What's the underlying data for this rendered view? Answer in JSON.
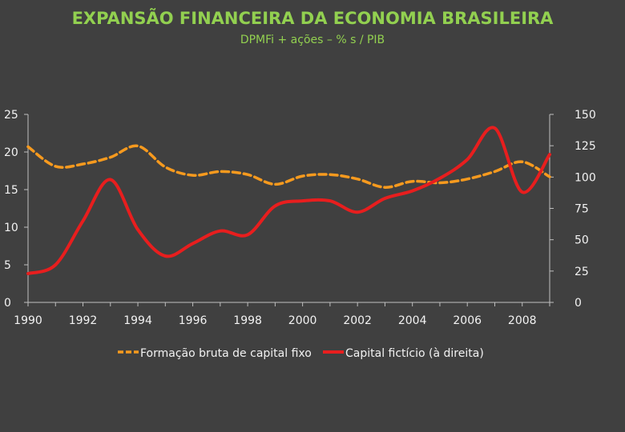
{
  "chart_data": {
    "type": "line",
    "title": "EXPANSÃO FINANCEIRA DA ECONOMIA BRASILEIRA",
    "subtitle": "DPMFi + ações – % s / PIB",
    "x": [
      1990,
      1991,
      1992,
      1993,
      1994,
      1995,
      1996,
      1997,
      1998,
      1999,
      2000,
      2001,
      2002,
      2003,
      2004,
      2005,
      2006,
      2007,
      2008,
      2009
    ],
    "x_tick_labels": [
      "1990",
      "1992",
      "1994",
      "1996",
      "1998",
      "2000",
      "2002",
      "2004",
      "2006",
      "2008"
    ],
    "y_left": {
      "lim": [
        0,
        25
      ],
      "ticks": [
        "0",
        "5",
        "10",
        "15",
        "20",
        "25"
      ]
    },
    "y_right": {
      "lim": [
        0,
        150
      ],
      "ticks": [
        "0",
        "25",
        "50",
        "75",
        "100",
        "125",
        "150"
      ]
    },
    "series": [
      {
        "name": "Formação bruta de capital fixo",
        "axis": "left",
        "color": "#f79a1e",
        "dash": true,
        "values": [
          20.7,
          18.1,
          18.4,
          19.3,
          20.8,
          18.0,
          16.9,
          17.4,
          17.0,
          15.7,
          16.8,
          17.0,
          16.4,
          15.3,
          16.1,
          15.9,
          16.4,
          17.4,
          18.7,
          16.7
        ]
      },
      {
        "name": "Capital fictício (à direita)",
        "axis": "right",
        "color": "#e81e1e",
        "dash": false,
        "values": [
          23,
          30,
          65,
          98,
          58,
          37,
          47,
          57,
          54,
          77,
          81,
          81,
          72,
          83,
          89,
          99,
          114,
          139,
          88,
          118
        ]
      }
    ],
    "legend_position": "bottom",
    "grid": false
  },
  "colors": {
    "background": "#404040",
    "title": "#92d050",
    "text": "#f2f2f2"
  }
}
